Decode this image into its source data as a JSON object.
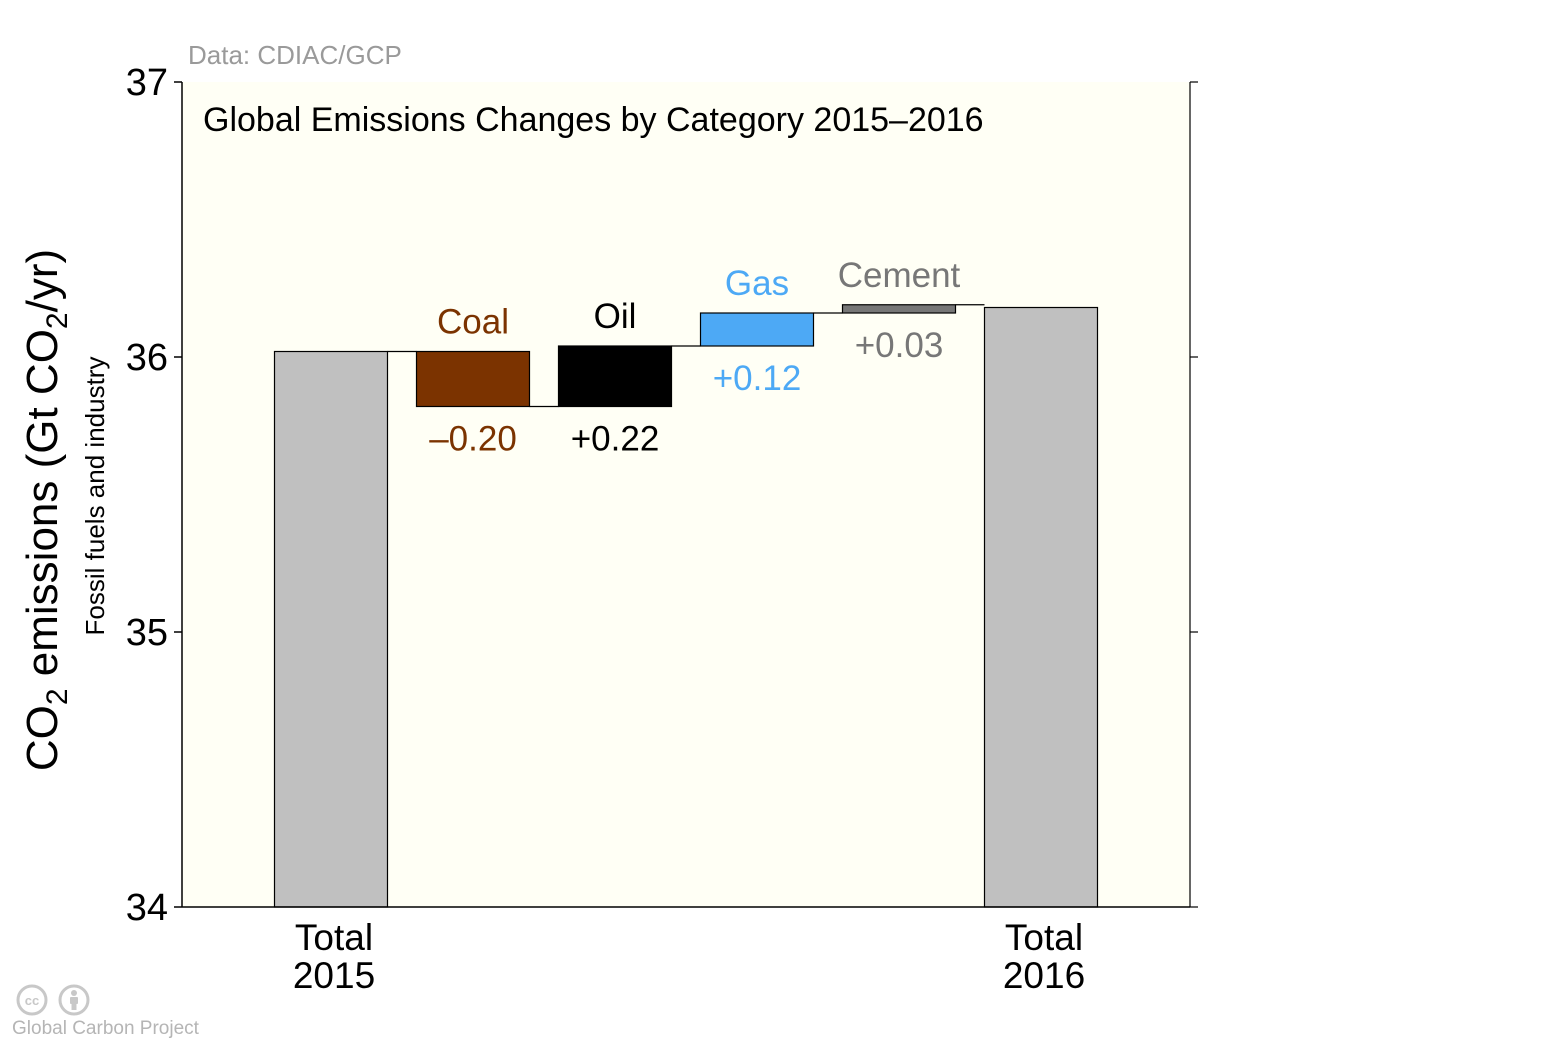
{
  "source_note": "Data: CDIAC/GCP",
  "footer": {
    "org": "Global Carbon Project",
    "license_icons": [
      "cc-icon",
      "by-icon"
    ]
  },
  "colors": {
    "plot_background": "#fffff5",
    "total_bar": "#c0c0c0",
    "coal": "#7b3300",
    "oil": "#000000",
    "gas": "#4da9f5",
    "cement": "#777777",
    "axis": "#000000",
    "source_text": "#9a9a9a"
  },
  "chart_data": {
    "type": "bar",
    "subtype": "waterfall",
    "title": "Global Emissions Changes by Category 2015–2016",
    "ylabel": {
      "main_prefix": "CO",
      "main_sub": "2",
      "main_mid": " emissions (Gt CO",
      "main_sub2": "2",
      "main_suffix": "/yr)",
      "secondary": "Fossil fuels and industry"
    },
    "ylim": [
      34,
      37
    ],
    "yticks": [
      34,
      35,
      36,
      37
    ],
    "grid": false,
    "totals": [
      {
        "label_line1": "Total",
        "label_line2": "2015",
        "value": 36.02
      },
      {
        "label_line1": "Total",
        "label_line2": "2016",
        "value": 36.18
      }
    ],
    "changes": [
      {
        "name": "Coal",
        "change": -0.2,
        "change_label": "–0.20",
        "color": "#7b3300"
      },
      {
        "name": "Oil",
        "change": 0.22,
        "change_label": "+0.22",
        "color": "#000000"
      },
      {
        "name": "Gas",
        "change": 0.12,
        "change_label": "+0.12",
        "color": "#4da9f5"
      },
      {
        "name": "Cement",
        "change": 0.03,
        "change_label": "+0.03",
        "color": "#777777"
      }
    ]
  }
}
